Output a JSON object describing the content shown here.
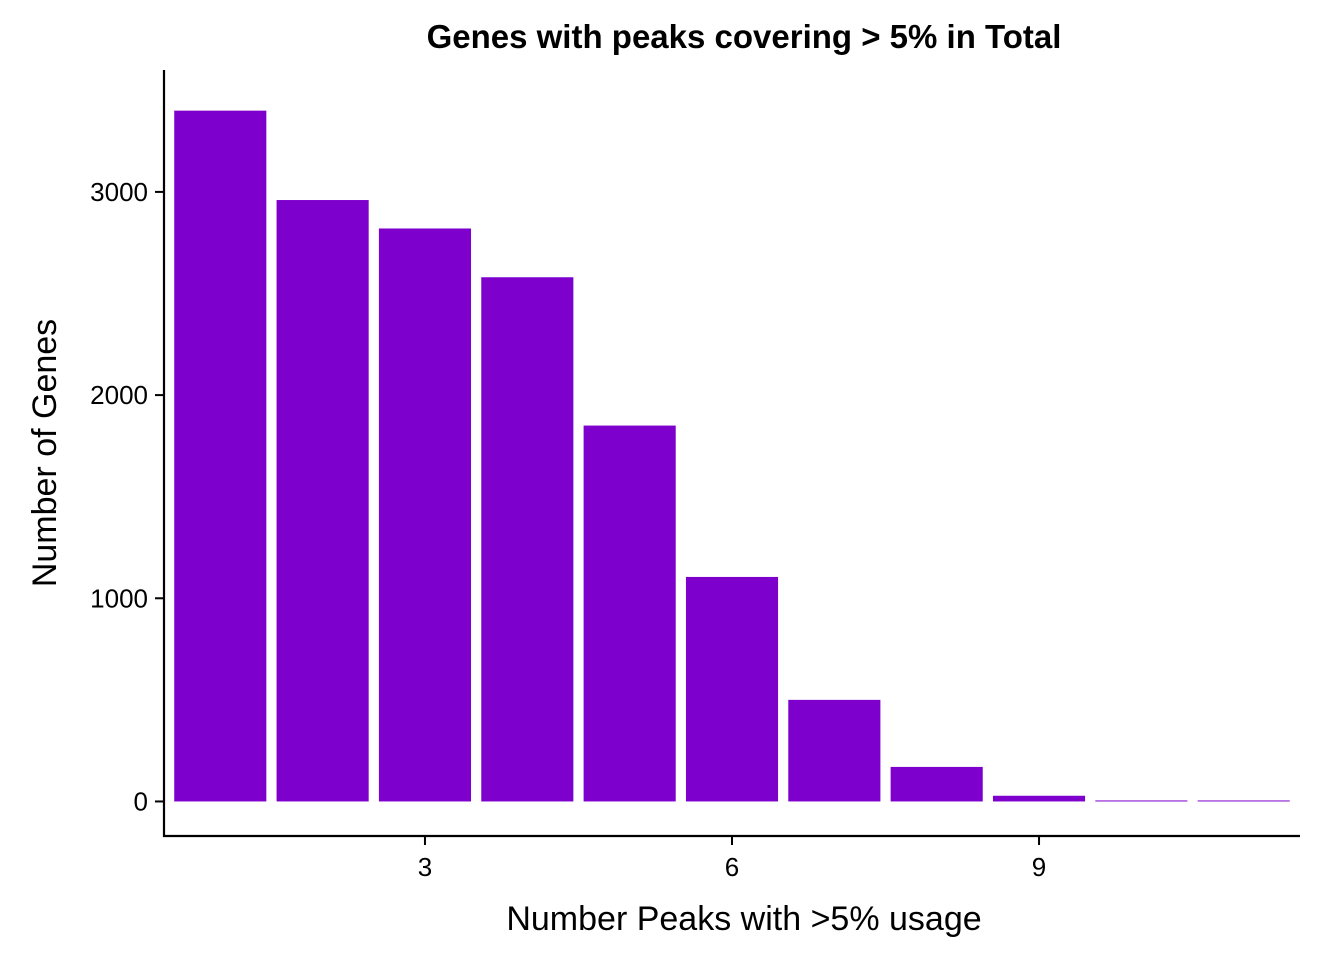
{
  "chart_data": {
    "type": "bar",
    "title": "Genes with peaks covering > 5% in Total",
    "xlabel": "Number Peaks with >5% usage",
    "ylabel": "Number of Genes",
    "x": [
      1,
      2,
      3,
      4,
      5,
      6,
      7,
      8,
      9,
      10,
      11
    ],
    "values": [
      3400,
      2960,
      2820,
      2580,
      1850,
      1105,
      500,
      170,
      28,
      5,
      2
    ],
    "bar_color": "#7E00CC",
    "xlim": [
      0.45,
      11.55
    ],
    "ylim": [
      -170,
      3600
    ],
    "x_ticks": [
      3,
      6,
      9
    ],
    "y_ticks": [
      0,
      1000,
      2000,
      3000
    ],
    "grid": false,
    "legend": "none"
  }
}
